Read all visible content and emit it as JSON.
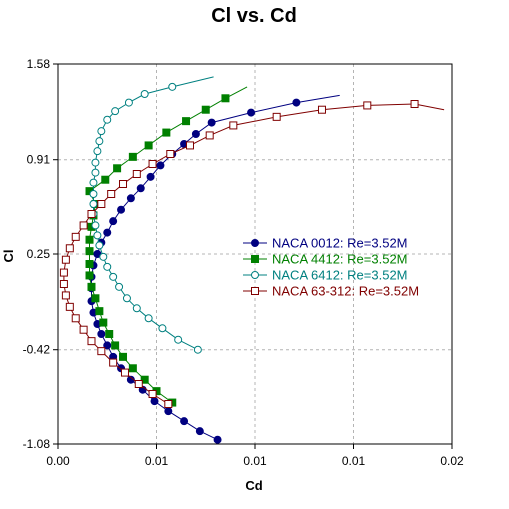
{
  "chart_data": {
    "type": "line",
    "title": "Cl vs. Cd",
    "xlabel": "Cd",
    "ylabel": "Cl",
    "xlim": [
      0.0,
      0.02
    ],
    "ylim": [
      -1.08,
      1.58
    ],
    "xticks": [
      0.0,
      0.005,
      0.01,
      0.015,
      0.02
    ],
    "xtick_labels": [
      "0.00",
      "0.01",
      "0.01",
      "0.01",
      "0.02"
    ],
    "yticks": [
      -1.08,
      -0.42,
      0.25,
      0.91,
      1.58
    ],
    "ytick_labels": [
      "-1.08",
      "-0.42",
      "0.25",
      "0.91",
      "1.58"
    ],
    "grid": true,
    "legend_position": "center-right",
    "series": [
      {
        "name": "NACA 0012: Re=3.52M",
        "color": "#000080",
        "marker": "filled-circle",
        "line_x": [
          0.00815,
          0.0081,
          0.0079,
          0.0077,
          0.0075,
          0.0073
        ],
        "line_y": [
          -1.08,
          -1.06,
          -1.0,
          -0.95,
          -0.87,
          -0.79
        ],
        "x": [
          0.0081,
          0.0072,
          0.0064,
          0.0056,
          0.0049,
          0.0043,
          0.0037,
          0.0032,
          0.0028,
          0.0025,
          0.0022,
          0.002,
          0.0018,
          0.0017,
          0.0017,
          0.0017,
          0.0018,
          0.002,
          0.0022,
          0.0025,
          0.0028,
          0.0032,
          0.0037,
          0.0042,
          0.0047,
          0.0052,
          0.0058,
          0.0064,
          0.007,
          0.0078,
          0.0098,
          0.0121
        ],
        "y": [
          -1.05,
          -0.99,
          -0.92,
          -0.85,
          -0.78,
          -0.7,
          -0.63,
          -0.55,
          -0.47,
          -0.39,
          -0.31,
          -0.24,
          -0.16,
          -0.08,
          0.01,
          0.09,
          0.17,
          0.25,
          0.33,
          0.4,
          0.48,
          0.56,
          0.64,
          0.71,
          0.79,
          0.87,
          0.95,
          1.02,
          1.09,
          1.17,
          1.24,
          1.31
        ],
        "tail_x": [
          0.0121,
          0.0143
        ],
        "tail_y": [
          1.31,
          1.36
        ]
      },
      {
        "name": "NACA 4412: Re=3.52M",
        "color": "#008000",
        "marker": "filled-square",
        "x": [
          0.0058,
          0.005,
          0.0044,
          0.0038,
          0.0033,
          0.0029,
          0.0026,
          0.0023,
          0.0021,
          0.0019,
          0.0017,
          0.0016,
          0.0016,
          0.0016,
          0.0016,
          0.0017,
          0.0018,
          0.0019,
          0.0016,
          0.0024,
          0.003,
          0.0038,
          0.0046,
          0.0055,
          0.0065,
          0.0075,
          0.0085
        ],
        "y": [
          -0.79,
          -0.71,
          -0.63,
          -0.55,
          -0.47,
          -0.39,
          -0.31,
          -0.23,
          -0.15,
          -0.06,
          0.02,
          0.1,
          0.18,
          0.27,
          0.35,
          0.44,
          0.52,
          0.6,
          0.69,
          0.77,
          0.85,
          0.93,
          1.01,
          1.1,
          1.18,
          1.26,
          1.34
        ],
        "tail_x": [
          0.0085,
          0.0096
        ],
        "tail_y": [
          1.34,
          1.42
        ]
      },
      {
        "name": "NACA 6412: Re=3.52M",
        "color": "#008080",
        "marker": "open-circle",
        "x": [
          0.0071,
          0.0061,
          0.0053,
          0.0046,
          0.004,
          0.0035,
          0.0031,
          0.0028,
          0.0025,
          0.0023,
          0.0021,
          0.002,
          0.0019,
          0.0018,
          0.0018,
          0.0018,
          0.0018,
          0.0019,
          0.0019,
          0.002,
          0.0021,
          0.0022,
          0.0025,
          0.0029,
          0.0036,
          0.0044,
          0.0058
        ],
        "y": [
          -0.42,
          -0.35,
          -0.27,
          -0.2,
          -0.13,
          -0.06,
          0.02,
          0.09,
          0.16,
          0.23,
          0.31,
          0.38,
          0.45,
          0.53,
          0.6,
          0.67,
          0.75,
          0.82,
          0.89,
          0.97,
          1.04,
          1.11,
          1.19,
          1.25,
          1.31,
          1.37,
          1.42
        ],
        "tail_x": [
          0.0058,
          0.0079
        ],
        "tail_y": [
          1.42,
          1.49
        ]
      },
      {
        "name": "NACA 63-312: Re=3.52M",
        "color": "#800000",
        "marker": "open-square",
        "x": [
          0.0056,
          0.0048,
          0.0041,
          0.0034,
          0.0028,
          0.0022,
          0.0017,
          0.0013,
          0.0009,
          0.0006,
          0.0004,
          0.0003,
          0.0003,
          0.0004,
          0.0006,
          0.0009,
          0.0013,
          0.0017,
          0.0022,
          0.0027,
          0.0033,
          0.004,
          0.0048,
          0.0057,
          0.0067,
          0.0077,
          0.0089,
          0.0111,
          0.0134,
          0.0157,
          0.0181
        ],
        "y": [
          -0.8,
          -0.73,
          -0.66,
          -0.58,
          -0.51,
          -0.43,
          -0.36,
          -0.28,
          -0.2,
          -0.12,
          -0.04,
          0.04,
          0.12,
          0.21,
          0.29,
          0.37,
          0.45,
          0.53,
          0.6,
          0.67,
          0.74,
          0.81,
          0.88,
          0.95,
          1.01,
          1.08,
          1.15,
          1.21,
          1.26,
          1.29,
          1.3
        ],
        "tail_x": [
          0.0181,
          0.0196
        ],
        "tail_y": [
          1.3,
          1.26
        ]
      }
    ]
  }
}
